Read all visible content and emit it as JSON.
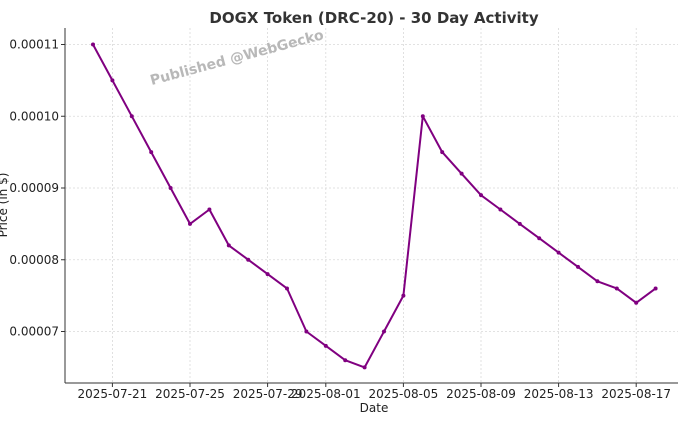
{
  "chart_data": {
    "type": "line",
    "title": "DOGX Token (DRC-20) - 30 Day Activity",
    "xlabel": "Date",
    "ylabel": "Price (in $)",
    "watermark": "Published @WebGecko",
    "line_color": "#800080",
    "grid": true,
    "x_tick_labels": [
      "2025-07-21",
      "2025-07-25",
      "2025-07-29",
      "2025-08-01",
      "2025-08-05",
      "2025-08-09",
      "2025-08-13",
      "2025-08-17"
    ],
    "y_tick_labels": [
      "0.00007",
      "0.00008",
      "0.00009",
      "0.00010",
      "0.00011"
    ],
    "y_ticks": [
      7e-05,
      8e-05,
      9e-05,
      0.0001,
      0.00011
    ],
    "series": [
      {
        "x": [
          "2025-07-20",
          "2025-07-21",
          "2025-07-22",
          "2025-07-23",
          "2025-07-24",
          "2025-07-25",
          "2025-07-26",
          "2025-07-27",
          "2025-07-28",
          "2025-07-29",
          "2025-07-30",
          "2025-07-31",
          "2025-08-01",
          "2025-08-02",
          "2025-08-03",
          "2025-08-04",
          "2025-08-05",
          "2025-08-06",
          "2025-08-07",
          "2025-08-08",
          "2025-08-09",
          "2025-08-10",
          "2025-08-11",
          "2025-08-12",
          "2025-08-13",
          "2025-08-14",
          "2025-08-15",
          "2025-08-16",
          "2025-08-17",
          "2025-08-18"
        ],
        "values": [
          0.00011,
          0.000105,
          0.0001,
          9.5e-05,
          9e-05,
          8.5e-05,
          8.7e-05,
          8.2e-05,
          8e-05,
          7.8e-05,
          7.6e-05,
          7e-05,
          6.8e-05,
          6.6e-05,
          6.5e-05,
          7e-05,
          7.5e-05,
          0.0001,
          9.5e-05,
          9.2e-05,
          8.9e-05,
          8.7e-05,
          8.5e-05,
          8.3e-05,
          8.1e-05,
          7.9e-05,
          7.7e-05,
          7.6e-05,
          7.4e-05,
          7.6e-05
        ]
      }
    ]
  }
}
